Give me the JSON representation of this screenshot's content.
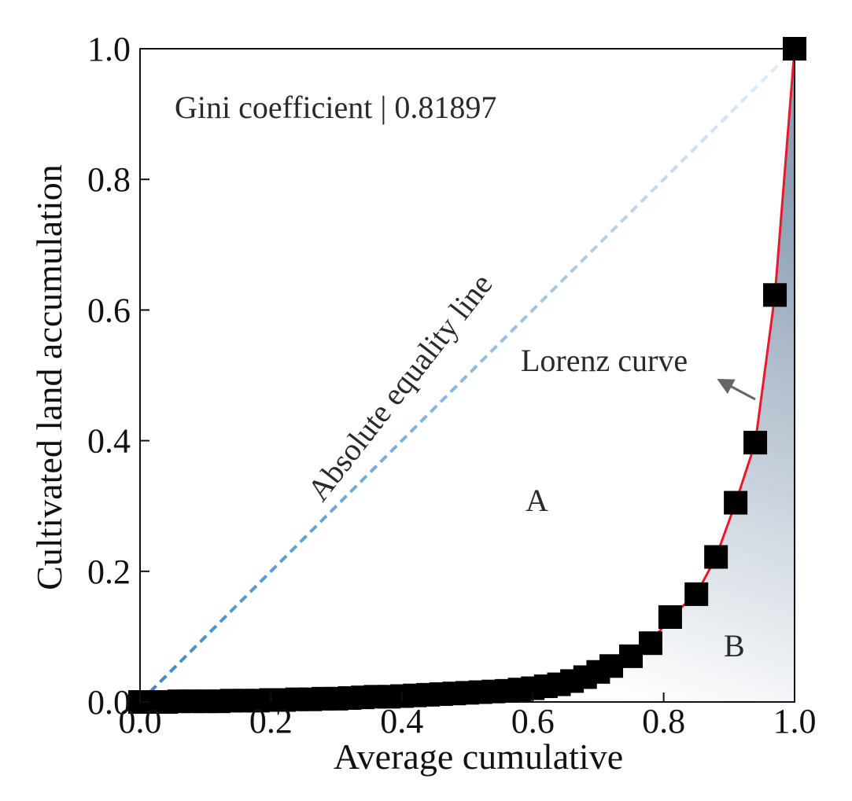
{
  "chart_data": {
    "type": "scatter",
    "title": "",
    "xlabel": "Average cumulative",
    "ylabel": "Cultivated land accumulation",
    "xlim": [
      0,
      1
    ],
    "ylim": [
      0,
      1
    ],
    "grid": false,
    "xticks": [
      0.0,
      0.2,
      0.4,
      0.6,
      0.8,
      1.0
    ],
    "yticks": [
      0.0,
      0.2,
      0.4,
      0.6,
      0.8,
      1.0
    ],
    "xtick_labels": [
      "0.0",
      "0.2",
      "0.4",
      "0.6",
      "0.8",
      "1.0"
    ],
    "ytick_labels": [
      "0.0",
      "0.2",
      "0.4",
      "0.6",
      "0.8",
      "1.0"
    ],
    "series": [
      {
        "name": "Lorenz curve",
        "style": "scatter+line",
        "marker": "square",
        "x": [
          0.0,
          0.02,
          0.04,
          0.06,
          0.08,
          0.1,
          0.12,
          0.14,
          0.16,
          0.18,
          0.2,
          0.22,
          0.24,
          0.26,
          0.28,
          0.3,
          0.32,
          0.34,
          0.36,
          0.38,
          0.4,
          0.42,
          0.44,
          0.46,
          0.48,
          0.5,
          0.52,
          0.54,
          0.56,
          0.58,
          0.6,
          0.62,
          0.64,
          0.66,
          0.68,
          0.7,
          0.72,
          0.75,
          0.78,
          0.81,
          0.85,
          0.88,
          0.91,
          0.94,
          0.97,
          1.0
        ],
        "y": [
          0.0,
          0.0,
          0.0,
          0.001,
          0.001,
          0.001,
          0.001,
          0.002,
          0.002,
          0.002,
          0.003,
          0.003,
          0.004,
          0.004,
          0.005,
          0.005,
          0.006,
          0.007,
          0.008,
          0.008,
          0.009,
          0.01,
          0.011,
          0.012,
          0.013,
          0.014,
          0.015,
          0.016,
          0.017,
          0.019,
          0.021,
          0.024,
          0.027,
          0.032,
          0.038,
          0.046,
          0.055,
          0.07,
          0.09,
          0.13,
          0.165,
          0.222,
          0.305,
          0.397,
          0.623,
          1.0
        ]
      },
      {
        "name": "Absolute equality line",
        "style": "dashed-line",
        "x": [
          0,
          1
        ],
        "y": [
          0,
          1
        ]
      }
    ],
    "annotations": {
      "gini": "Gini coefficient | 0.81897",
      "equality_label": "Absolute equality line",
      "lorenz_label": "Lorenz curve",
      "region_a": "A",
      "region_b": "B"
    },
    "colors": {
      "lorenz_line": "#e8192c",
      "marker": "#000000",
      "equality_start": "#3a86c8",
      "equality_end": "#e4eff8",
      "fill_dark": "#8c9fb5",
      "fill_light": "#ffffff",
      "arrow": "#666666"
    }
  }
}
